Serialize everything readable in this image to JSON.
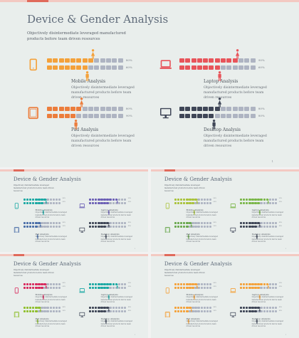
{
  "title": "Device & Gender Analysis",
  "subtitle": "Objectively disintermediate leveraged manufactured products before team driven resources",
  "page_number": "1",
  "description": "Objectively disintermediate leveraged manufactured products before team driven resources",
  "panels": [
    {
      "name": "Mobile Analysis",
      "icon": "phone-icon",
      "pct_top": "80%",
      "pct_bottom": "60%",
      "fill_top": 0.6,
      "fill_bottom": 0.55
    },
    {
      "name": "Laptop Analysis",
      "icon": "laptop-icon",
      "pct_top": "90%",
      "pct_bottom": "60%",
      "fill_top": 0.8,
      "fill_bottom": 0.55
    },
    {
      "name": "Pad Analysis",
      "icon": "tablet-icon",
      "pct_top": "80%",
      "pct_bottom": "90%",
      "fill_top": 0.45,
      "fill_bottom": 0.35
    },
    {
      "name": "Desktop Analysis",
      "icon": "desktop-icon",
      "pct_top": "80%",
      "pct_bottom": "80%",
      "fill_top": 0.5,
      "fill_bottom": 0.45
    }
  ],
  "variants": [
    {
      "colors": [
        "#f4a13a",
        "#e8545a",
        "#ec7d3c",
        "#3f4657"
      ],
      "rest": "#aeb4c2"
    },
    {
      "colors": [
        "#1aa8a3",
        "#6b5fb5",
        "#4a6ea8",
        "#3f4657"
      ],
      "rest": "#aeb4c2"
    },
    {
      "colors": [
        "#a9c23a",
        "#7ab648",
        "#6aa84f",
        "#3f4657"
      ],
      "rest": "#aeb4c2"
    },
    {
      "colors": [
        "#d8285c",
        "#1aa8a3",
        "#8fbf2d",
        "#3f4657"
      ],
      "rest": "#aeb4c2"
    },
    {
      "colors": [
        "#f4a13a",
        "#f4a13a",
        "#f4a13a",
        "#3f4657"
      ],
      "rest": "#aeb4c2"
    }
  ]
}
